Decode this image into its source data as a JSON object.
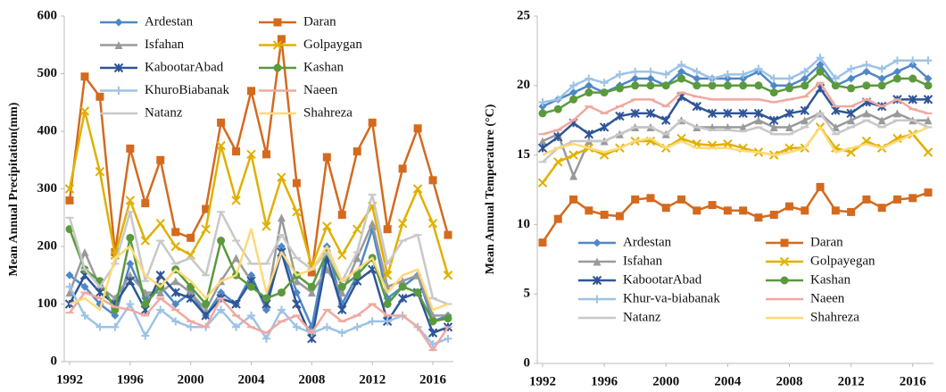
{
  "chart_data": [
    {
      "type": "line",
      "y_label": "Mean Annual Precipitation(mm)",
      "legend": "top",
      "x": [
        1992,
        1993,
        1994,
        1995,
        1996,
        1997,
        1998,
        1999,
        2000,
        2001,
        2002,
        2003,
        2004,
        2005,
        2006,
        2007,
        2008,
        2009,
        2010,
        2011,
        2012,
        2013,
        2014,
        2015,
        2016,
        2017
      ],
      "xlim": [
        1992,
        2017
      ],
      "xticks": [
        1992,
        1996,
        2000,
        2004,
        2008,
        2012,
        2016
      ],
      "ylim": [
        0,
        600
      ],
      "yticks": [
        0,
        100,
        200,
        300,
        400,
        500,
        600
      ],
      "series": [
        {
          "name": "Ardestan",
          "color": "#4e88c7",
          "marker": "diamond",
          "values": [
            150,
            130,
            100,
            80,
            170,
            110,
            130,
            100,
            120,
            80,
            120,
            100,
            150,
            90,
            200,
            120,
            60,
            200,
            100,
            150,
            230,
            110,
            130,
            150,
            70,
            80
          ]
        },
        {
          "name": "Daran",
          "color": "#d46a1e",
          "marker": "square",
          "values": [
            280,
            495,
            460,
            190,
            370,
            275,
            350,
            225,
            215,
            265,
            415,
            365,
            470,
            360,
            560,
            310,
            155,
            355,
            255,
            365,
            415,
            230,
            335,
            405,
            315,
            220
          ]
        },
        {
          "name": "Isfahan",
          "color": "#9a9a9a",
          "marker": "triangle",
          "values": [
            120,
            190,
            130,
            110,
            150,
            120,
            120,
            140,
            120,
            90,
            140,
            180,
            140,
            100,
            250,
            140,
            120,
            160,
            120,
            180,
            240,
            130,
            140,
            150,
            80,
            80
          ]
        },
        {
          "name": "Golpaygan",
          "color": "#e0b000",
          "marker": "x",
          "values": [
            300,
            435,
            330,
            185,
            280,
            210,
            240,
            200,
            185,
            230,
            375,
            280,
            360,
            235,
            320,
            260,
            165,
            235,
            185,
            230,
            270,
            150,
            240,
            300,
            240,
            150
          ]
        },
        {
          "name": "KabootarAbad",
          "color": "#2f5597",
          "marker": "star",
          "values": [
            100,
            150,
            120,
            100,
            140,
            90,
            150,
            120,
            110,
            80,
            110,
            100,
            140,
            100,
            190,
            100,
            40,
            180,
            90,
            140,
            160,
            70,
            110,
            120,
            50,
            60
          ]
        },
        {
          "name": "Kashan",
          "color": "#5a9a3c",
          "marker": "circle",
          "values": [
            230,
            160,
            140,
            90,
            215,
            100,
            130,
            160,
            130,
            100,
            210,
            150,
            130,
            110,
            120,
            150,
            130,
            190,
            130,
            150,
            180,
            100,
            130,
            120,
            70,
            75
          ]
        },
        {
          "name": "KhuroBiabanak",
          "color": "#9dc3e6",
          "marker": "plus",
          "values": [
            130,
            80,
            60,
            60,
            100,
            45,
            90,
            70,
            60,
            60,
            90,
            60,
            80,
            40,
            90,
            60,
            50,
            60,
            50,
            60,
            70,
            70,
            80,
            60,
            30,
            40
          ]
        },
        {
          "name": "Naeen",
          "color": "#f0a8a0",
          "marker": "dash",
          "values": [
            85,
            120,
            110,
            95,
            90,
            80,
            110,
            90,
            70,
            60,
            110,
            80,
            60,
            50,
            70,
            80,
            50,
            90,
            70,
            80,
            100,
            80,
            80,
            60,
            20,
            60
          ]
        },
        {
          "name": "Natanz",
          "color": "#c8c8c8",
          "marker": "dash",
          "values": [
            250,
            160,
            130,
            170,
            260,
            140,
            210,
            170,
            180,
            150,
            260,
            210,
            170,
            170,
            220,
            180,
            160,
            190,
            140,
            190,
            290,
            170,
            210,
            220,
            110,
            100
          ]
        },
        {
          "name": "Shahreza",
          "color": "#ffd97a",
          "marker": "none",
          "values": [
            100,
            110,
            90,
            180,
            200,
            150,
            130,
            160,
            140,
            110,
            140,
            150,
            230,
            120,
            190,
            150,
            160,
            200,
            140,
            160,
            180,
            120,
            150,
            160,
            90,
            100
          ]
        }
      ]
    },
    {
      "type": "line",
      "y_label": "Mean Annual Temperature (°C)",
      "legend": "bottom",
      "x": [
        1992,
        1993,
        1994,
        1995,
        1996,
        1997,
        1998,
        1999,
        2000,
        2001,
        2002,
        2003,
        2004,
        2005,
        2006,
        2007,
        2008,
        2009,
        2010,
        2011,
        2012,
        2013,
        2014,
        2015,
        2016,
        2017
      ],
      "xlim": [
        1992,
        2017
      ],
      "xticks": [
        1992,
        1996,
        2000,
        2004,
        2008,
        2012,
        2016
      ],
      "ylim": [
        0,
        25
      ],
      "yticks": [
        0,
        5,
        10,
        15,
        20,
        25
      ],
      "series": [
        {
          "name": "Ardestan",
          "color": "#4e88c7",
          "marker": "diamond",
          "values": [
            18.5,
            19,
            19.5,
            20,
            19.5,
            20,
            20.5,
            20.5,
            20,
            21,
            20.5,
            20.5,
            20.5,
            20.5,
            21,
            20,
            20,
            20.5,
            21.5,
            20,
            20.5,
            21,
            20.5,
            21,
            21.5,
            20.5
          ]
        },
        {
          "name": "Daran",
          "color": "#d46a1e",
          "marker": "square",
          "values": [
            8.7,
            10.4,
            11.8,
            11,
            10.7,
            10.6,
            11.8,
            11.9,
            11.2,
            11.8,
            11,
            11.4,
            11,
            11,
            10.5,
            10.7,
            11.3,
            11,
            12.7,
            11,
            10.9,
            11.8,
            11.2,
            11.8,
            11.9,
            12.3
          ]
        },
        {
          "name": "Isfahan",
          "color": "#9a9a9a",
          "marker": "triangle",
          "values": [
            16,
            16.5,
            13.5,
            16,
            16,
            16.5,
            17,
            17,
            16.5,
            17.5,
            17,
            17,
            17,
            17,
            17.5,
            17,
            17,
            17.5,
            18,
            17,
            17.5,
            18,
            17.5,
            18,
            17.5,
            17.5
          ]
        },
        {
          "name": "Golpayegan",
          "color": "#e0b000",
          "marker": "x",
          "values": [
            13,
            14.5,
            15,
            15.5,
            15,
            15.5,
            16,
            16,
            15.5,
            16.2,
            15.8,
            15.7,
            15.8,
            15.5,
            15.2,
            15,
            15.5,
            15.5,
            17,
            15.5,
            15.2,
            16,
            15.5,
            16.2,
            16.5,
            15.2
          ]
        },
        {
          "name": "KabootarAbad",
          "color": "#2f5597",
          "marker": "star",
          "values": [
            15.5,
            16.3,
            17.3,
            16.5,
            17,
            17.8,
            18,
            18,
            17.5,
            19.2,
            18.5,
            18,
            18,
            18,
            18,
            17.5,
            18,
            18.2,
            19.8,
            18.2,
            18,
            18.8,
            18.5,
            19,
            19,
            19
          ]
        },
        {
          "name": "Kashan",
          "color": "#5a9a3c",
          "marker": "circle",
          "values": [
            18,
            18.3,
            19,
            19.5,
            19.5,
            19.8,
            20,
            20,
            20,
            20.5,
            20,
            20,
            20,
            20,
            20,
            19.5,
            19.8,
            20,
            21,
            20,
            19.8,
            20,
            20,
            20.5,
            20.5,
            20
          ]
        },
        {
          "name": "Khur-va-biabanak",
          "color": "#9dc3e6",
          "marker": "plus",
          "values": [
            18.8,
            19,
            20,
            20.5,
            20.2,
            20.8,
            21,
            21,
            20.8,
            21.5,
            21,
            20.5,
            20.8,
            20.8,
            21.2,
            20.5,
            20.5,
            21,
            22,
            20.5,
            21.2,
            21.5,
            21.2,
            21.8,
            21.8,
            21.8
          ]
        },
        {
          "name": "Naeen",
          "color": "#f0a8a0",
          "marker": "dash",
          "values": [
            16.5,
            16.8,
            17.5,
            18.5,
            18,
            18.5,
            19,
            19,
            18.5,
            19.5,
            19.2,
            19,
            19,
            19,
            19,
            18.8,
            19,
            19.2,
            20.2,
            18.5,
            18.5,
            19,
            18.5,
            19,
            18.3,
            18
          ]
        },
        {
          "name": "Natanz",
          "color": "#c8c8c8",
          "marker": "dash",
          "values": [
            14.5,
            15.5,
            16,
            16,
            16,
            16.5,
            17,
            17,
            16.5,
            17.5,
            17,
            16.8,
            16.8,
            16.7,
            17,
            16.5,
            16.5,
            17,
            18,
            16.5,
            17,
            17.5,
            17,
            17.5,
            17.5,
            17
          ]
        },
        {
          "name": "Shahreza",
          "color": "#ffd97a",
          "marker": "none",
          "values": [
            15,
            15.5,
            15.8,
            15.5,
            15.2,
            15.5,
            16,
            16.2,
            15.5,
            16,
            15.5,
            15.5,
            15.5,
            15.3,
            15.2,
            15,
            15.2,
            15.5,
            17,
            15.2,
            15.5,
            15.8,
            15.5,
            16,
            16.5,
            17
          ]
        }
      ]
    }
  ]
}
